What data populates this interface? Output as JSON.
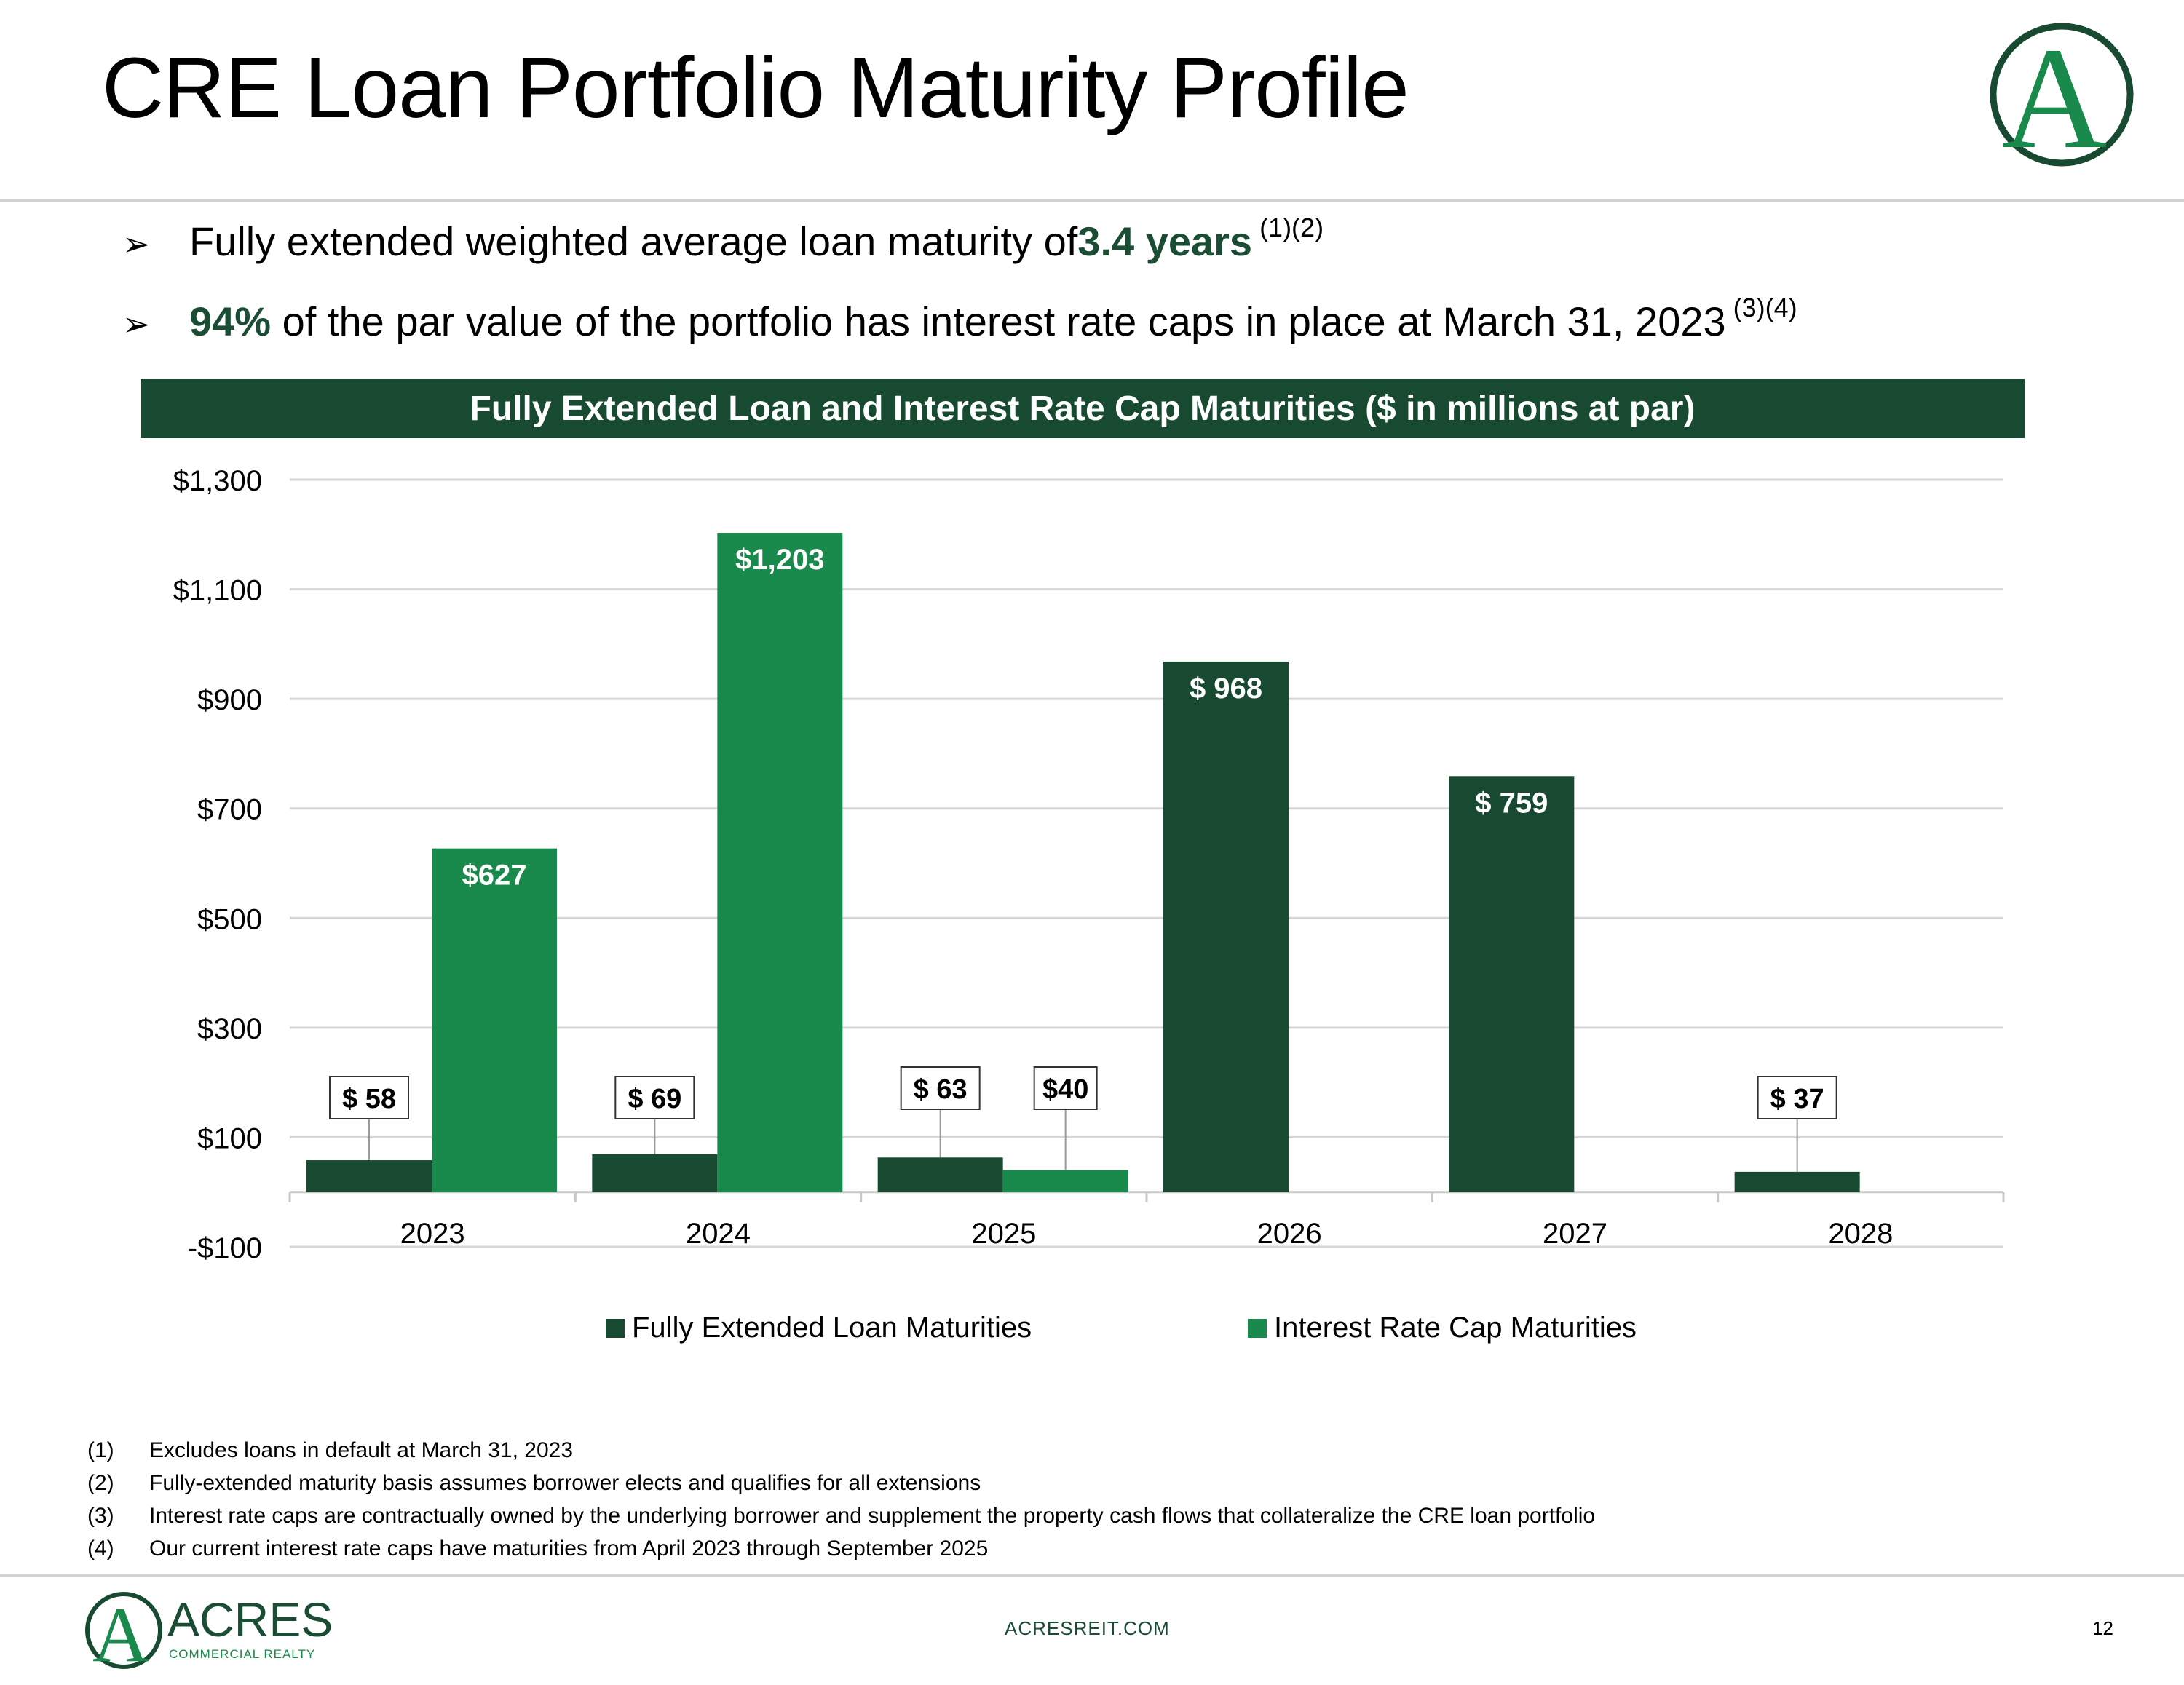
{
  "slide": {
    "title": "CRE Loan Portfolio Maturity Profile",
    "page_number": "12",
    "footer_url": "ACRESREIT.COM"
  },
  "bullets": [
    {
      "pre": "Fully extended weighted average loan maturity of",
      "highlight": "3.4 years",
      "post": "",
      "sup": "(1)(2)"
    },
    {
      "pre": "",
      "highlight": "94%",
      "post": " of the par value of the portfolio has interest rate caps in place at March 31, 2023",
      "sup": "(3)(4)"
    }
  ],
  "chart_data": {
    "type": "bar",
    "title": "Fully Extended Loan and Interest Rate Cap Maturities ($ in millions at par)",
    "categories": [
      "2023",
      "2024",
      "2025",
      "2026",
      "2027",
      "2028"
    ],
    "series": [
      {
        "name": "Fully Extended Loan Maturities",
        "color": "#174a31",
        "values": [
          58,
          69,
          63,
          968,
          759,
          37
        ],
        "labels": [
          "$ 58",
          "$ 69",
          "$ 63",
          "$ 968",
          "$ 759",
          "$ 37"
        ]
      },
      {
        "name": "Interest Rate Cap Maturities",
        "color": "#1a8a4c",
        "values": [
          627,
          1203,
          40,
          0,
          0,
          0
        ],
        "labels": [
          "$627",
          "$1,203",
          "$40",
          "",
          "",
          ""
        ]
      }
    ],
    "y_ticks": [
      -100,
      100,
      300,
      500,
      700,
      900,
      1100,
      1300
    ],
    "y_tick_labels": [
      "-$100",
      "$100",
      "$300",
      "$500",
      "$700",
      "$900",
      "$1,100",
      "$1,300"
    ],
    "ylim": [
      -100,
      1300
    ],
    "grid": true,
    "legend_position": "bottom"
  },
  "footnotes": [
    {
      "num": "(1)",
      "text": "Excludes loans in default at March 31, 2023"
    },
    {
      "num": "(2)",
      "text": "Fully-extended maturity basis assumes borrower elects and qualifies for all extensions"
    },
    {
      "num": "(3)",
      "text": "Interest rate caps are contractually owned by the underlying borrower and supplement the property cash flows that collateralize the CRE loan portfolio"
    },
    {
      "num": "(4)",
      "text": "Our current interest rate caps have maturities from April 2023 through September 2025"
    }
  ],
  "logo": {
    "wordmark": "ACRES",
    "tagline": "COMMERCIAL REALTY",
    "monogram": "A"
  }
}
